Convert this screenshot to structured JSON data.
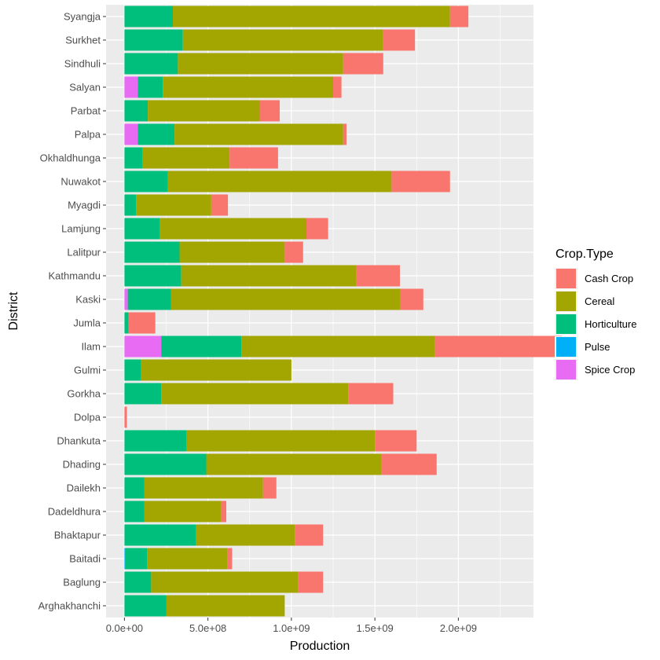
{
  "chart_data": {
    "type": "bar",
    "orientation": "horizontal",
    "stacked": true,
    "title": "",
    "xlabel": "Production",
    "ylabel": "District",
    "xlim": [
      -110000000,
      2450000000
    ],
    "x_ticks": [
      0,
      500000000,
      1000000000,
      1500000000,
      2000000000
    ],
    "x_tick_labels": [
      "0.0e+00",
      "5.0e+08",
      "1.0e+09",
      "1.5e+09",
      "2.0e+09"
    ],
    "grid": true,
    "legend_position": "right",
    "legend_title": "Crop.Type",
    "legend": [
      {
        "name": "Cash Crop",
        "color": "#F8766D"
      },
      {
        "name": "Cereal",
        "color": "#A3A500"
      },
      {
        "name": "Horticulture",
        "color": "#00BF7D"
      },
      {
        "name": "Pulse",
        "color": "#00B0F6"
      },
      {
        "name": "Spice Crop",
        "color": "#E76BF3"
      }
    ],
    "categories": [
      "Syangja",
      "Surkhet",
      "Sindhuli",
      "Salyan",
      "Parbat",
      "Palpa",
      "Okhaldhunga",
      "Nuwakot",
      "Myagdi",
      "Lamjung",
      "Lalitpur",
      "Kathmandu",
      "Kaski",
      "Jumla",
      "Ilam",
      "Gulmi",
      "Gorkha",
      "Dolpa",
      "Dhankuta",
      "Dhading",
      "Dailekh",
      "Dadeldhura",
      "Bhaktapur",
      "Baitadi",
      "Baglung",
      "Arghakhanchi"
    ],
    "series": [
      {
        "name": "Spice Crop",
        "values": [
          0,
          0,
          0,
          80000000,
          0,
          80000000,
          0,
          0,
          0,
          0,
          0,
          0,
          20000000,
          0,
          220000000,
          0,
          0,
          0,
          0,
          0,
          0,
          0,
          0,
          0,
          0,
          0
        ]
      },
      {
        "name": "Pulse",
        "values": [
          0,
          0,
          0,
          0,
          0,
          0,
          0,
          0,
          0,
          0,
          0,
          0,
          0,
          0,
          0,
          0,
          0,
          0,
          0,
          0,
          0,
          0,
          0,
          5000000,
          0,
          0
        ]
      },
      {
        "name": "Horticulture",
        "values": [
          290000000,
          350000000,
          320000000,
          150000000,
          140000000,
          220000000,
          110000000,
          260000000,
          70000000,
          210000000,
          330000000,
          340000000,
          260000000,
          25000000,
          480000000,
          100000000,
          220000000,
          0,
          370000000,
          490000000,
          120000000,
          120000000,
          430000000,
          130000000,
          160000000,
          250000000
        ]
      },
      {
        "name": "Cereal",
        "values": [
          1660000000,
          1200000000,
          990000000,
          1020000000,
          670000000,
          1010000000,
          520000000,
          1340000000,
          450000000,
          880000000,
          630000000,
          1050000000,
          1370000000,
          0,
          1160000000,
          900000000,
          1120000000,
          0,
          1130000000,
          1050000000,
          710000000,
          460000000,
          590000000,
          480000000,
          880000000,
          710000000
        ]
      },
      {
        "name": "Cash Crop",
        "values": [
          110000000,
          190000000,
          240000000,
          50000000,
          120000000,
          20000000,
          290000000,
          350000000,
          100000000,
          130000000,
          110000000,
          260000000,
          140000000,
          160000000,
          760000000,
          0,
          270000000,
          15000000,
          250000000,
          330000000,
          80000000,
          30000000,
          170000000,
          30000000,
          150000000,
          0
        ]
      }
    ]
  }
}
